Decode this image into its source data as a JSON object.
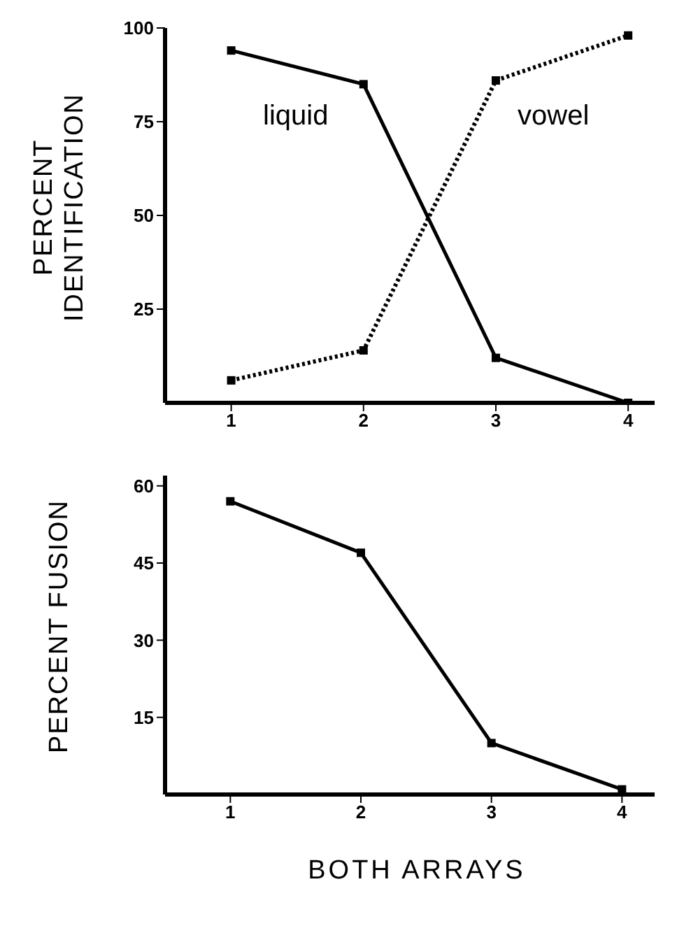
{
  "chart_data": [
    {
      "type": "line",
      "ylabel": "PERCENT IDENTIFICATION",
      "x": [
        1,
        2,
        3,
        4
      ],
      "xlim": [
        0.5,
        4.2
      ],
      "xticks": [
        1,
        2,
        3,
        4
      ],
      "ylim": [
        0,
        100
      ],
      "yticks": [
        25,
        50,
        75,
        100
      ],
      "grid": false,
      "legend": false,
      "marker": "square",
      "series": [
        {
          "name": "liquid",
          "color": "#000000",
          "line_style": "solid",
          "values": [
            94,
            85,
            12,
            0
          ]
        },
        {
          "name": "vowel",
          "color": "#000000",
          "line_style": "dotted",
          "values": [
            6,
            14,
            86,
            98
          ]
        }
      ]
    },
    {
      "type": "line",
      "ylabel": "PERCENT FUSION",
      "xlabel": "BOTH ARRAYS",
      "x": [
        1,
        2,
        3,
        4
      ],
      "xlim": [
        0.5,
        4.25
      ],
      "xticks": [
        1,
        2,
        3,
        4
      ],
      "ylim": [
        0,
        62
      ],
      "yticks": [
        15,
        30,
        45,
        60
      ],
      "grid": false,
      "legend": false,
      "marker": "square",
      "series": [
        {
          "color": "#000000",
          "line_style": "solid",
          "values": [
            57,
            47,
            10,
            1
          ]
        }
      ]
    }
  ]
}
